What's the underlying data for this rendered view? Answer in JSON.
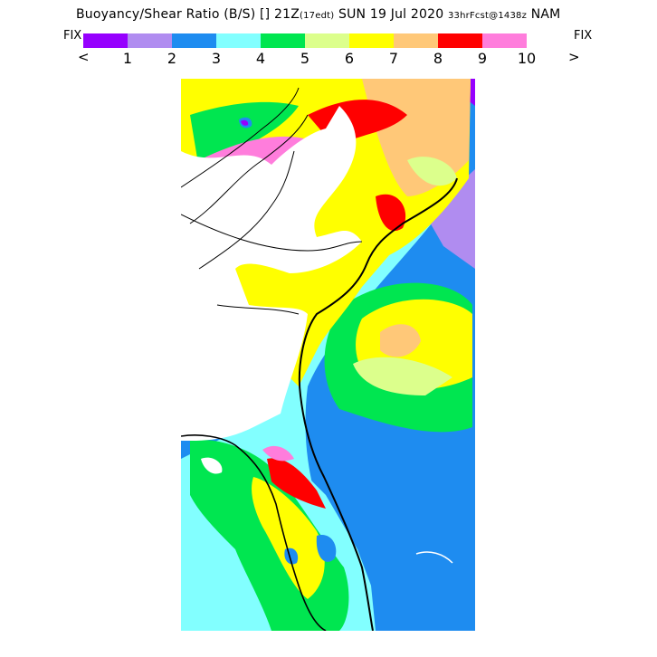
{
  "header": {
    "title_main": "Buoyancy/Shear Ratio (B/S) [] 21Z",
    "title_edt": "(17edt)",
    "title_date": "SUN 19 Jul 2020",
    "title_fcst": "33hrFcst@1438z",
    "title_model": "NAM"
  },
  "legend": {
    "fix_left": "FIX",
    "fix_right": "FIX",
    "prev": "<",
    "next": ">",
    "colors": [
      "#9600fe",
      "#b08cf0",
      "#1e8cf0",
      "#82ffff",
      "#00e650",
      "#dcff8c",
      "#ffff00",
      "#ffc878",
      "#ff0000",
      "#ff7ddc"
    ],
    "ticks": [
      "1",
      "2",
      "3",
      "4",
      "5",
      "6",
      "7",
      "8",
      "9",
      "10"
    ]
  },
  "map": {
    "colors": {
      "ocean_deep": "#1e8cf0",
      "ocean_light": "#82ffff",
      "land_none": "#ffffff",
      "coast": "#000000"
    }
  }
}
